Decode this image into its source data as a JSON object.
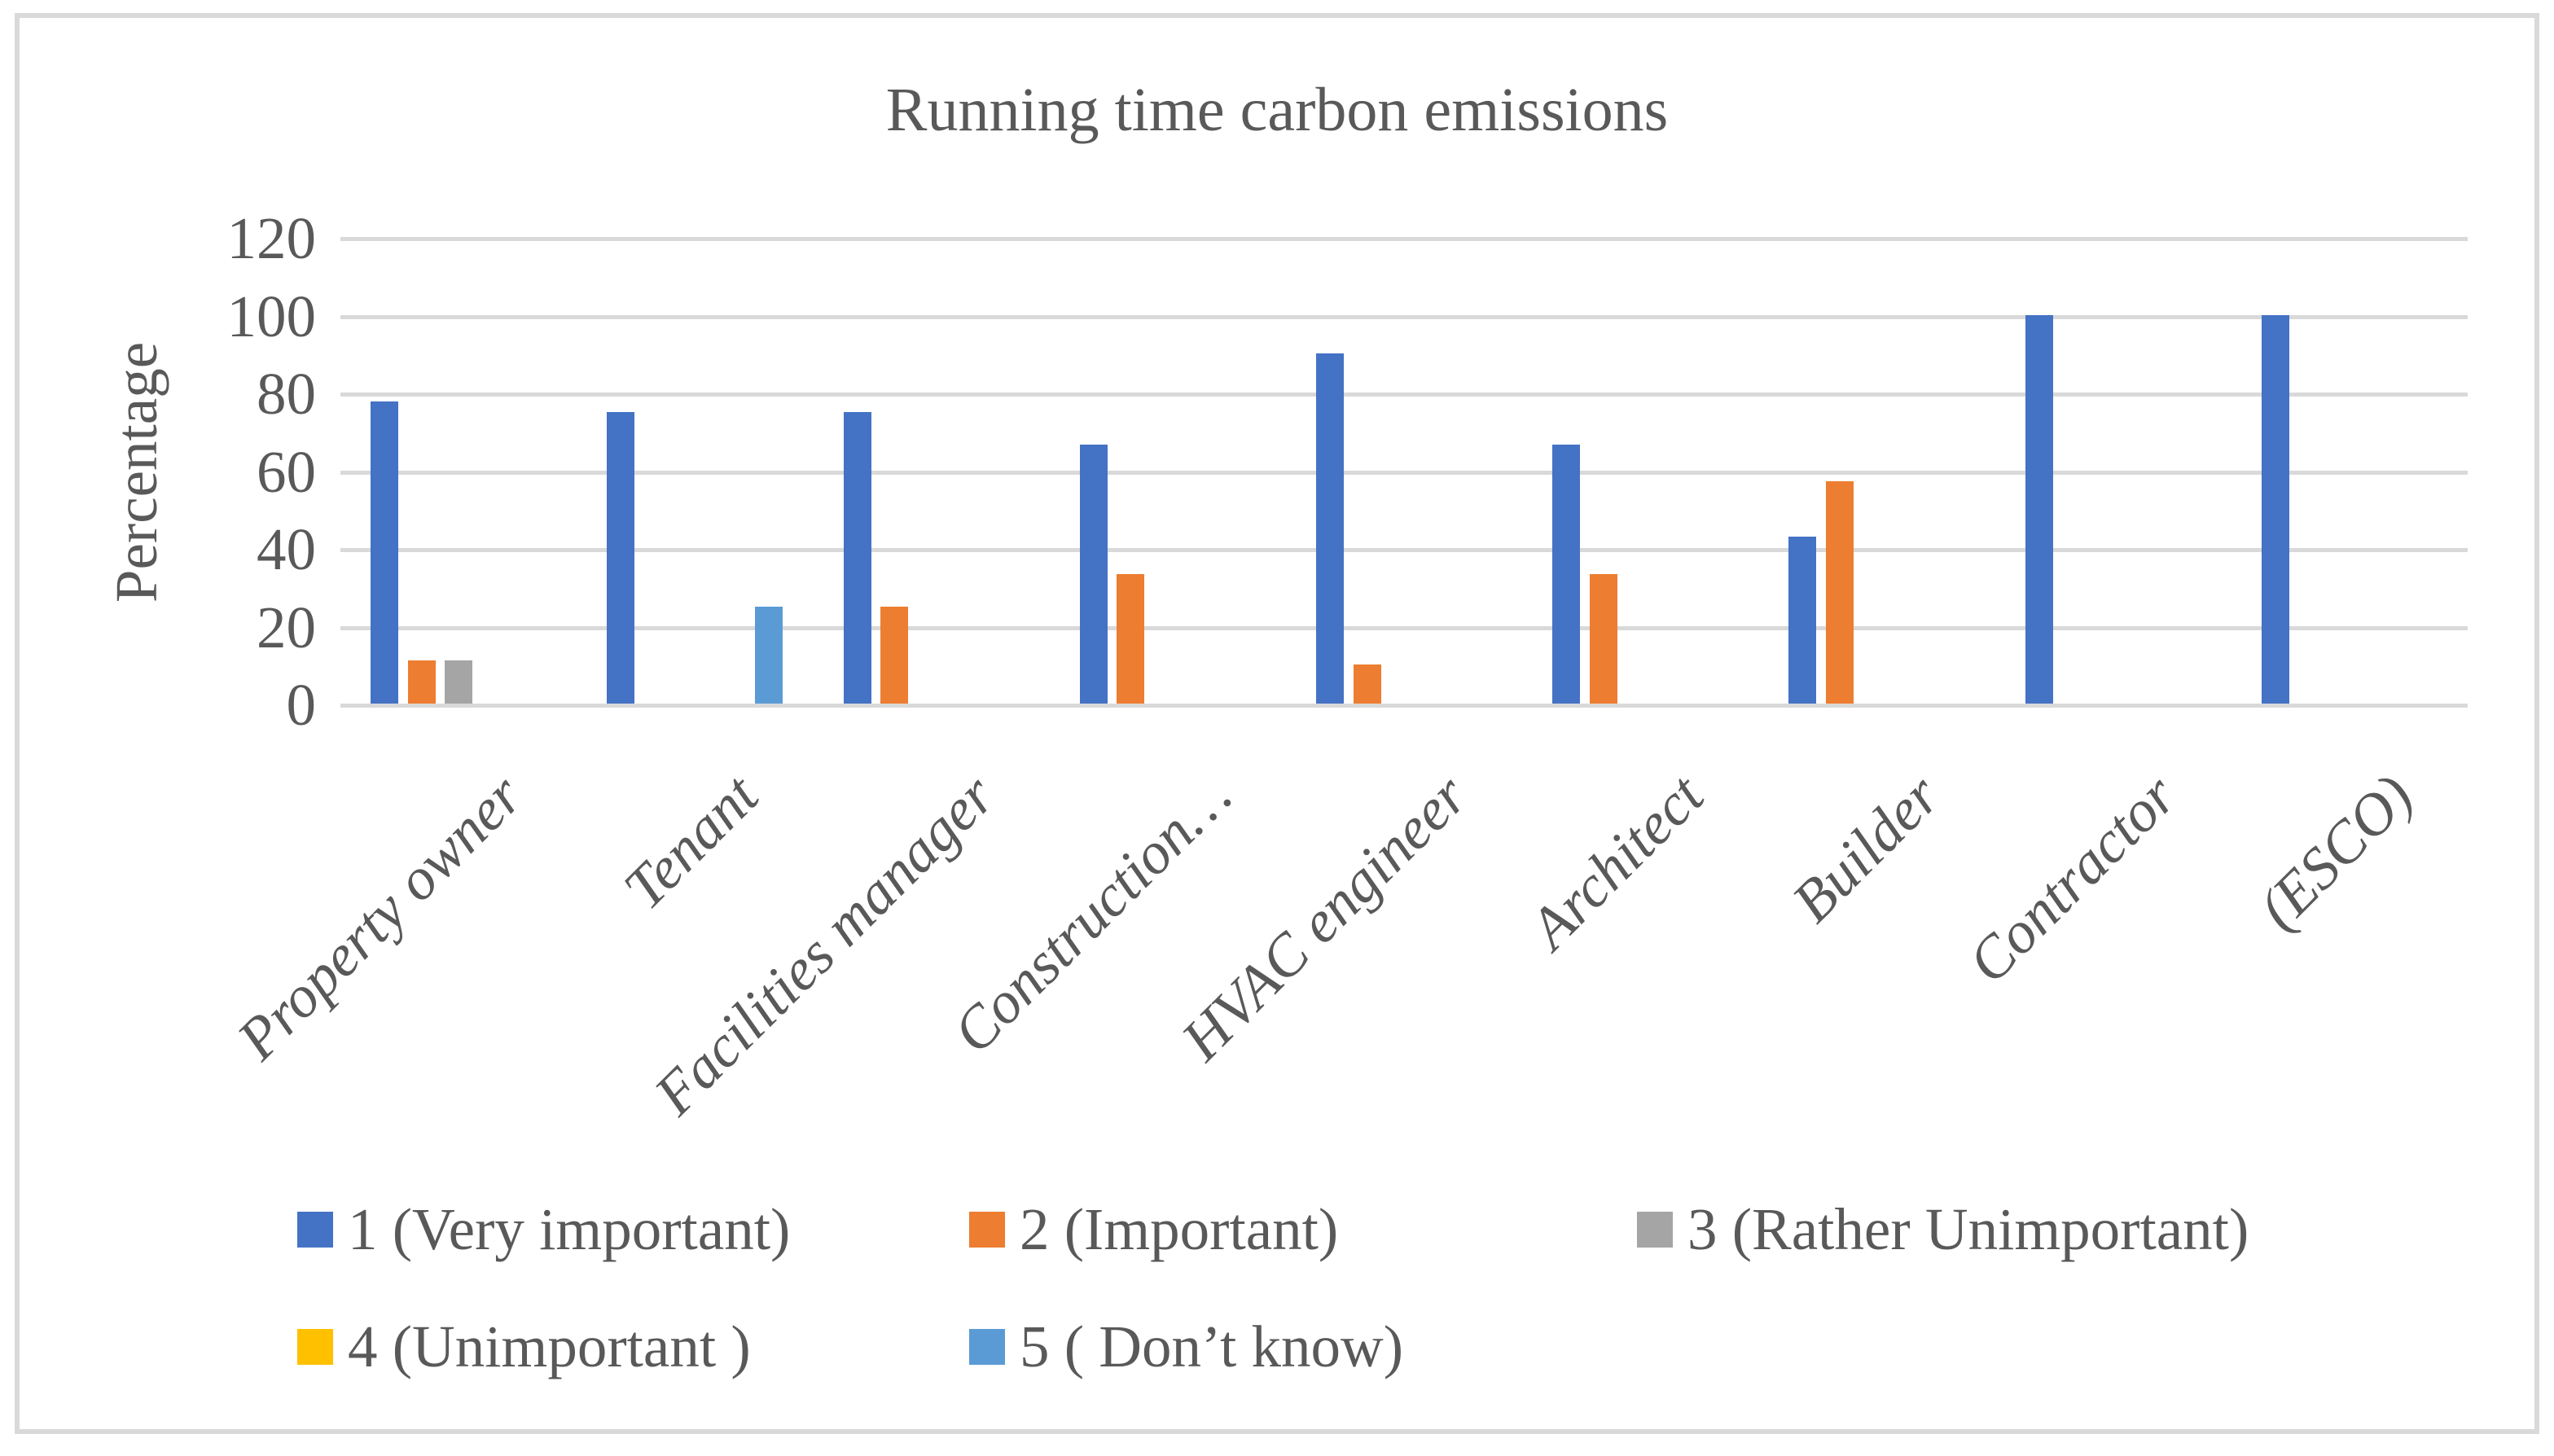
{
  "chart_data": {
    "type": "bar",
    "title": "Running time carbon emissions",
    "ylabel": "Percentage",
    "xlabel": "",
    "ylim": [
      0,
      120
    ],
    "yticks": [
      0,
      20,
      40,
      60,
      80,
      100,
      120
    ],
    "grid": true,
    "legend_position": "bottom",
    "categories": [
      "Property owner",
      "Tenant",
      "Facilities manager",
      "Construction…",
      "HVAC engineer",
      "Architect",
      "Builder",
      "Contractor",
      "(ESCO)"
    ],
    "series": [
      {
        "name": "1 (Very important)",
        "color": "#4472C4",
        "values": [
          77.8,
          75,
          75,
          66.7,
          90,
          66.7,
          42.9,
          100,
          100
        ]
      },
      {
        "name": "2 (Important)",
        "color": "#ED7D31",
        "values": [
          11.1,
          0,
          25,
          33.3,
          10,
          33.3,
          57.1,
          0,
          0
        ]
      },
      {
        "name": "3 (Rather Unimportant)",
        "color": "#A5A5A5",
        "values": [
          11.1,
          0,
          0,
          0,
          0,
          0,
          0,
          0,
          0
        ]
      },
      {
        "name": "4 (Unimportant )",
        "color": "#FFC000",
        "values": [
          0,
          0,
          0,
          0,
          0,
          0,
          0,
          0,
          0
        ]
      },
      {
        "name": "5 ( Don’t know)",
        "color": "#5B9BD5",
        "values": [
          0,
          25,
          0,
          0,
          0,
          0,
          0,
          0,
          0
        ]
      }
    ]
  },
  "colors": {
    "text": "#595959",
    "grid": "#D9D9D9",
    "frame": "#D9D9D9",
    "background": "#FFFFFF"
  }
}
